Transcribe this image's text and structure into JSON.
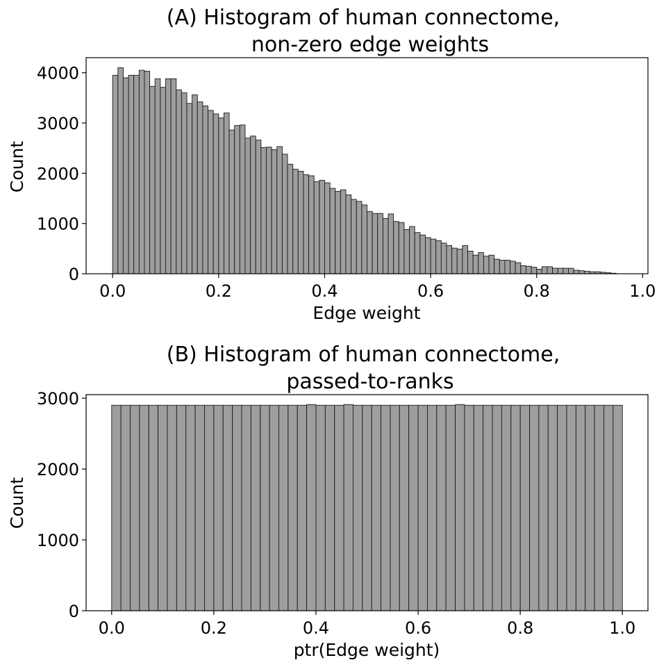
{
  "colors": {
    "bar_fill": "#9e9e9e",
    "bar_edge": "#1a1a1a",
    "axis": "#000000"
  },
  "chart_data": [
    {
      "type": "bar",
      "title": "(A) Histogram of human connectome,",
      "title_line2": "non-zero edge weights",
      "xlabel": "Edge weight",
      "ylabel": "Count",
      "xlim": [
        -0.05,
        1.01
      ],
      "ylim": [
        0,
        4300
      ],
      "xticks": [
        0.0,
        0.2,
        0.4,
        0.6,
        0.8,
        1.0
      ],
      "xtick_labels": [
        "0.0",
        "0.2",
        "0.4",
        "0.6",
        "0.8",
        "1.0"
      ],
      "yticks": [
        0,
        1000,
        2000,
        3000,
        4000
      ],
      "ytick_labels": [
        "0",
        "1000",
        "2000",
        "3000",
        "4000"
      ],
      "bin_start": 0.0,
      "bin_width": 0.01,
      "values": [
        3950,
        4100,
        3900,
        3950,
        3950,
        4050,
        4030,
        3730,
        3880,
        3710,
        3880,
        3880,
        3660,
        3600,
        3390,
        3560,
        3420,
        3340,
        3250,
        3180,
        3100,
        3200,
        2860,
        2950,
        2960,
        2700,
        2740,
        2660,
        2510,
        2520,
        2470,
        2530,
        2380,
        2180,
        2080,
        2040,
        1970,
        1950,
        1830,
        1860,
        1810,
        1700,
        1640,
        1670,
        1570,
        1480,
        1440,
        1370,
        1240,
        1200,
        1200,
        1100,
        1190,
        1040,
        1020,
        880,
        940,
        820,
        770,
        720,
        690,
        660,
        610,
        560,
        510,
        490,
        560,
        450,
        370,
        420,
        350,
        370,
        290,
        270,
        270,
        250,
        220,
        160,
        150,
        130,
        90,
        140,
        140,
        110,
        110,
        110,
        110,
        70,
        60,
        50,
        40,
        40,
        30,
        20,
        10
      ]
    },
    {
      "type": "bar",
      "title": "(B) Histogram of human connectome,",
      "title_line2": "passed-to-ranks",
      "xlabel": "ptr(Edge weight)",
      "ylabel": "Count",
      "xlim": [
        -0.05,
        1.05
      ],
      "ylim": [
        0,
        3050
      ],
      "xticks": [
        0.0,
        0.2,
        0.4,
        0.6,
        0.8,
        1.0
      ],
      "xtick_labels": [
        "0.0",
        "0.2",
        "0.4",
        "0.6",
        "0.8",
        "1.0"
      ],
      "yticks": [
        0,
        1000,
        2000,
        3000
      ],
      "ytick_labels": [
        "0",
        "1000",
        "2000",
        "3000"
      ],
      "bin_start": 0.0,
      "bin_width": 0.0181818,
      "values": [
        2900,
        2900,
        2900,
        2900,
        2900,
        2900,
        2900,
        2900,
        2900,
        2900,
        2900,
        2900,
        2900,
        2900,
        2900,
        2900,
        2900,
        2900,
        2900,
        2900,
        2900,
        2910,
        2900,
        2900,
        2900,
        2910,
        2900,
        2900,
        2900,
        2900,
        2900,
        2900,
        2900,
        2900,
        2900,
        2900,
        2900,
        2910,
        2900,
        2900,
        2900,
        2900,
        2900,
        2900,
        2900,
        2900,
        2900,
        2900,
        2900,
        2900,
        2900,
        2900,
        2900,
        2900,
        2900
      ]
    }
  ]
}
